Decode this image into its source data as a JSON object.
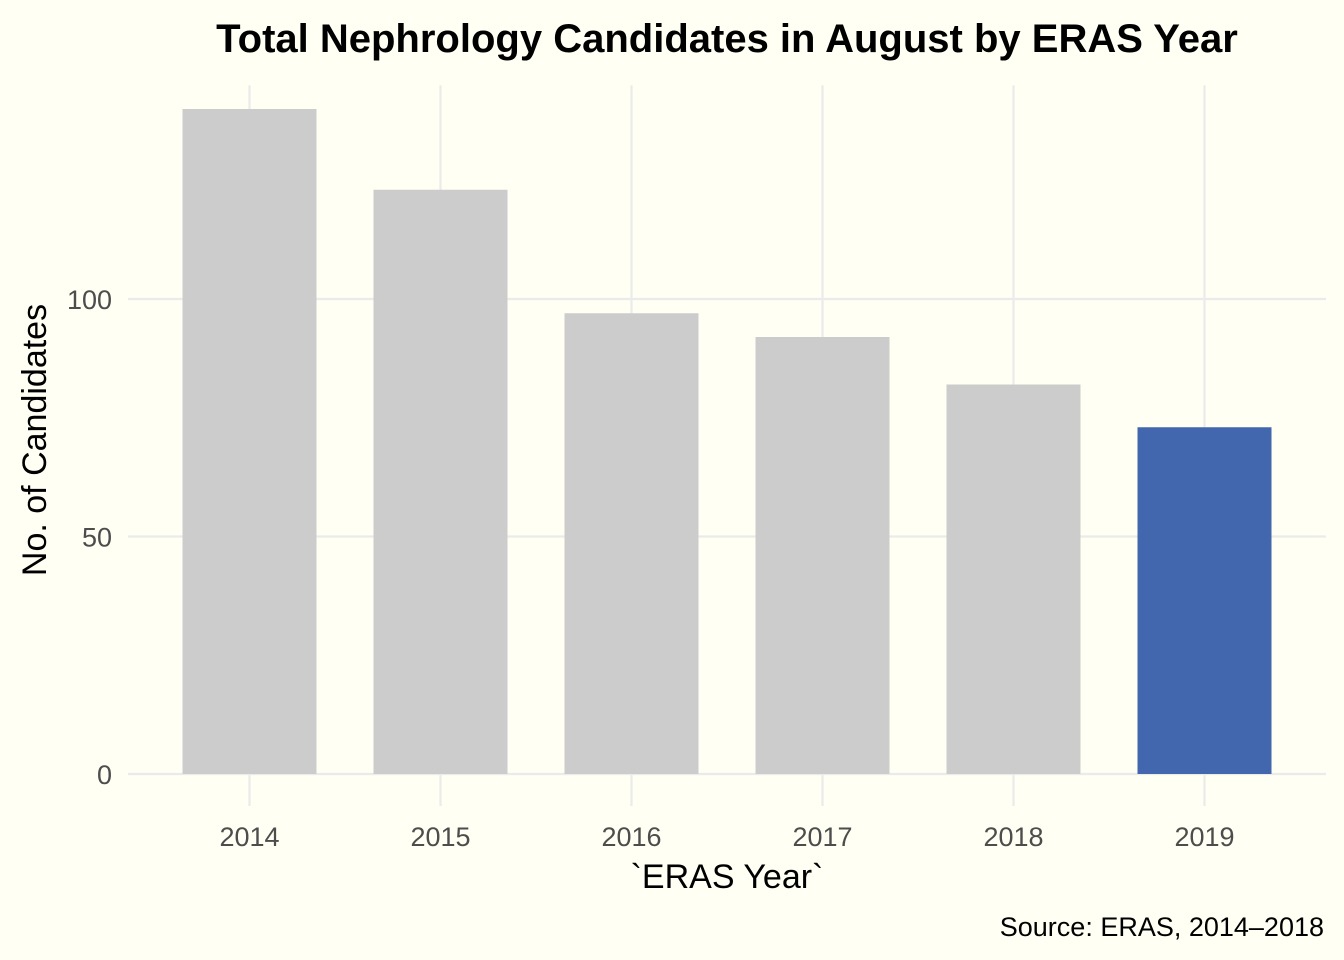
{
  "chart_data": {
    "type": "bar",
    "title": "Total Nephrology Candidates in August by ERAS Year",
    "xlabel": "`ERAS Year`",
    "ylabel": "No. of Candidates",
    "caption": "Source: ERAS, 2014–2018",
    "categories": [
      "2014",
      "2015",
      "2016",
      "2017",
      "2018",
      "2019"
    ],
    "values": [
      140,
      123,
      97,
      92,
      82,
      73
    ],
    "highlight_index": 5,
    "ylim": [
      0,
      145
    ],
    "yticks": [
      0,
      50,
      100
    ],
    "ytick_labels": [
      "0",
      "50",
      "100"
    ],
    "grid": true,
    "legend": "none"
  },
  "colors": {
    "background": "#fffff3",
    "bar_default": "#cccccc",
    "bar_highlight": "#4267ae",
    "grid": "#ebebeb"
  }
}
